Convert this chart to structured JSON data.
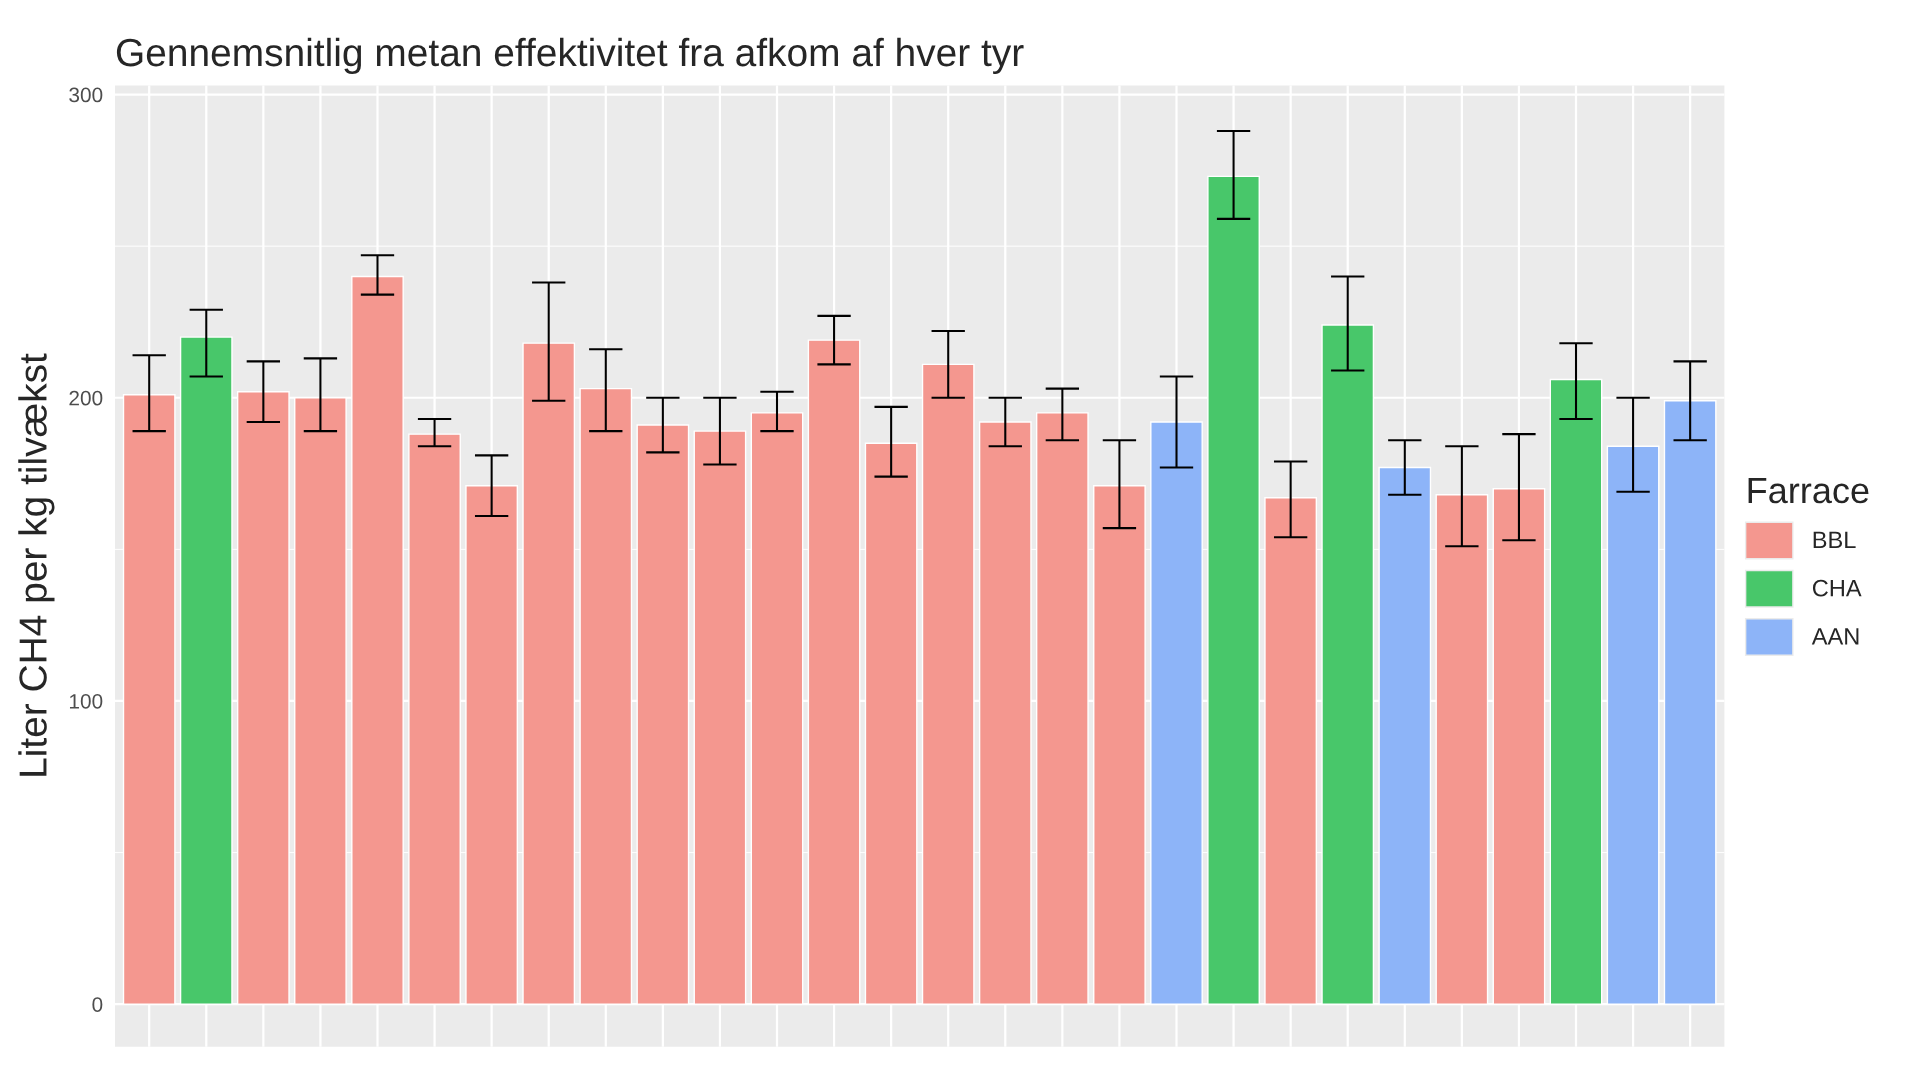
{
  "chart_data": {
    "type": "bar",
    "title": "Gennemsnitlig metan effektivitet fra afkom af hver tyr",
    "ylabel": "Liter CH4 per kg tilvækst",
    "legend_title": "Farrace",
    "categories": [
      null,
      null,
      null,
      null,
      null,
      null,
      null,
      null,
      null,
      null,
      null,
      null,
      null,
      null,
      null,
      null,
      null,
      null,
      null,
      null,
      null,
      null,
      null,
      null,
      null,
      null,
      null,
      null
    ],
    "series": [
      {
        "name": "BBL",
        "color": "#f4978f",
        "values": [
          201,
          null,
          202,
          200,
          240,
          188,
          171,
          218,
          203,
          191,
          189,
          195,
          219,
          185,
          211,
          192,
          195,
          171,
          null,
          null,
          167,
          null,
          null,
          168,
          170,
          null,
          null,
          null
        ],
        "errors": [
          [
            189,
            214
          ],
          null,
          [
            192,
            212
          ],
          [
            189,
            213
          ],
          [
            234,
            247
          ],
          [
            184,
            193
          ],
          [
            161,
            181
          ],
          [
            199,
            238
          ],
          [
            189,
            216
          ],
          [
            182,
            200
          ],
          [
            178,
            200
          ],
          [
            189,
            202
          ],
          [
            211,
            227
          ],
          [
            174,
            197
          ],
          [
            200,
            222
          ],
          [
            184,
            200
          ],
          [
            186,
            203
          ],
          [
            157,
            186
          ],
          null,
          null,
          [
            154,
            179
          ],
          null,
          null,
          [
            151,
            184
          ],
          [
            153,
            188
          ],
          null,
          null,
          null
        ]
      },
      {
        "name": "CHA",
        "color": "#48c76a",
        "values": [
          null,
          220,
          null,
          null,
          null,
          null,
          null,
          null,
          null,
          null,
          null,
          null,
          null,
          null,
          null,
          null,
          null,
          null,
          null,
          273,
          null,
          224,
          null,
          null,
          null,
          206,
          null,
          null
        ],
        "errors": [
          null,
          [
            207,
            229
          ],
          null,
          null,
          null,
          null,
          null,
          null,
          null,
          null,
          null,
          null,
          null,
          null,
          null,
          null,
          null,
          null,
          null,
          [
            259,
            288
          ],
          null,
          [
            209,
            240
          ],
          null,
          null,
          null,
          [
            193,
            218
          ],
          null,
          null
        ]
      },
      {
        "name": "AAN",
        "color": "#8db4f8",
        "values": [
          null,
          null,
          null,
          null,
          null,
          null,
          null,
          null,
          null,
          null,
          null,
          null,
          null,
          null,
          null,
          null,
          null,
          null,
          192,
          null,
          null,
          null,
          177,
          null,
          null,
          null,
          184,
          199
        ],
        "errors": [
          null,
          null,
          null,
          null,
          null,
          null,
          null,
          null,
          null,
          null,
          null,
          null,
          null,
          null,
          null,
          null,
          null,
          null,
          [
            177,
            207
          ],
          null,
          null,
          null,
          [
            168,
            186
          ],
          null,
          null,
          null,
          [
            169,
            200
          ],
          [
            186,
            212
          ]
        ]
      }
    ],
    "ylim": [
      -14,
      303
    ],
    "yticks": [
      0,
      {
        "value": 50,
        "label": null
      },
      100,
      {
        "value": 150,
        "label": null
      },
      200,
      {
        "value": 250,
        "label": null
      },
      300
    ],
    "grid": true,
    "legend": "right"
  }
}
